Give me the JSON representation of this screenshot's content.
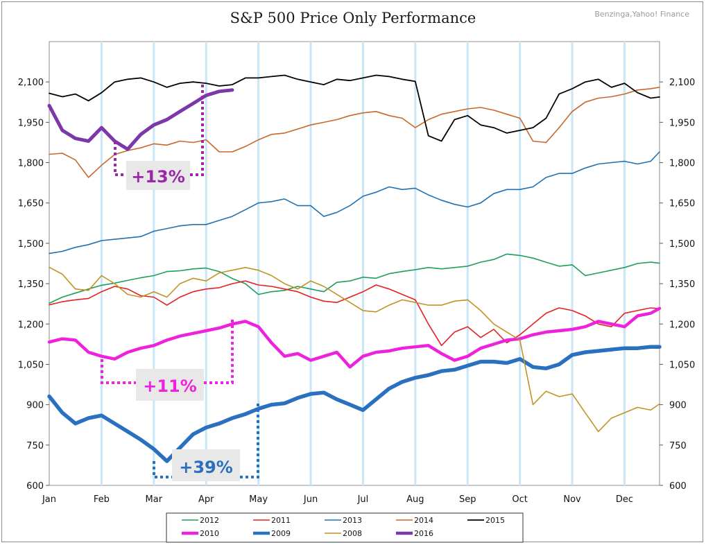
{
  "title": "S&P 500 Price Only Performance",
  "source": "Benzinga,Yahoo! Finance",
  "chart_data": {
    "type": "line",
    "title": "S&P 500 Price Only Performance",
    "x_categories": [
      "Jan",
      "Feb",
      "Mar",
      "Apr",
      "May",
      "Jun",
      "Jul",
      "Aug",
      "Sep",
      "Oct",
      "Nov",
      "Dec"
    ],
    "ylim": [
      600,
      2250
    ],
    "yticks": [
      600,
      750,
      900,
      1050,
      1200,
      1350,
      1500,
      1650,
      1800,
      1950,
      2100
    ],
    "ytick_labels": [
      "600",
      "750",
      "900",
      "1,050",
      "1,200",
      "1,350",
      "1,500",
      "1,650",
      "1,800",
      "1,950",
      "2,100"
    ],
    "grid": "vertical",
    "legend_position": "bottom",
    "series": [
      {
        "name": "2012",
        "color": "#1e9e5a",
        "width": 1.6,
        "x": [
          0,
          0.25,
          0.5,
          0.75,
          1,
          1.25,
          1.5,
          1.75,
          2,
          2.25,
          2.5,
          2.75,
          3,
          3.25,
          3.5,
          3.75,
          4,
          4.25,
          4.5,
          4.75,
          5,
          5.25,
          5.5,
          5.75,
          6,
          6.25,
          6.5,
          6.75,
          7,
          7.25,
          7.5,
          7.75,
          8,
          8.25,
          8.5,
          8.75,
          9,
          9.25,
          9.5,
          9.75,
          10,
          10.25,
          10.5,
          10.75,
          11,
          11.25,
          11.5,
          11.67
        ],
        "y": [
          1277,
          1300,
          1315,
          1330,
          1344,
          1352,
          1362,
          1372,
          1380,
          1395,
          1398,
          1405,
          1408,
          1395,
          1369,
          1350,
          1310,
          1320,
          1325,
          1340,
          1330,
          1320,
          1355,
          1360,
          1374,
          1370,
          1387,
          1395,
          1402,
          1410,
          1405,
          1410,
          1415,
          1430,
          1440,
          1460,
          1455,
          1445,
          1430,
          1415,
          1420,
          1380,
          1390,
          1400,
          1410,
          1425,
          1430,
          1426
        ]
      },
      {
        "name": "2011",
        "color": "#e52020",
        "width": 1.6,
        "x": [
          0,
          0.25,
          0.5,
          0.75,
          1,
          1.25,
          1.5,
          1.75,
          2,
          2.25,
          2.5,
          2.75,
          3,
          3.25,
          3.5,
          3.75,
          4,
          4.25,
          4.5,
          4.75,
          5,
          5.25,
          5.5,
          5.75,
          6,
          6.25,
          6.5,
          6.75,
          7,
          7.25,
          7.5,
          7.75,
          8,
          8.25,
          8.5,
          8.75,
          9,
          9.25,
          9.5,
          9.75,
          10,
          10.25,
          10.5,
          10.75,
          11,
          11.25,
          11.5,
          11.67
        ],
        "y": [
          1271,
          1283,
          1290,
          1295,
          1320,
          1340,
          1330,
          1305,
          1300,
          1270,
          1300,
          1320,
          1330,
          1335,
          1350,
          1360,
          1345,
          1340,
          1330,
          1320,
          1300,
          1285,
          1280,
          1300,
          1320,
          1345,
          1330,
          1310,
          1290,
          1200,
          1120,
          1170,
          1190,
          1150,
          1180,
          1130,
          1160,
          1200,
          1240,
          1260,
          1250,
          1230,
          1200,
          1190,
          1240,
          1250,
          1260,
          1257
        ]
      },
      {
        "name": "2013",
        "color": "#2070b0",
        "width": 1.6,
        "x": [
          0,
          0.25,
          0.5,
          0.75,
          1,
          1.25,
          1.5,
          1.75,
          2,
          2.25,
          2.5,
          2.75,
          3,
          3.25,
          3.5,
          3.75,
          4,
          4.25,
          4.5,
          4.75,
          5,
          5.25,
          5.5,
          5.75,
          6,
          6.25,
          6.5,
          6.75,
          7,
          7.25,
          7.5,
          7.75,
          8,
          8.25,
          8.5,
          8.75,
          9,
          9.25,
          9.5,
          9.75,
          10,
          10.25,
          10.5,
          10.75,
          11,
          11.25,
          11.5,
          11.67
        ],
        "y": [
          1462,
          1470,
          1485,
          1495,
          1510,
          1515,
          1520,
          1525,
          1545,
          1555,
          1565,
          1570,
          1570,
          1585,
          1600,
          1625,
          1650,
          1655,
          1665,
          1640,
          1640,
          1600,
          1615,
          1640,
          1675,
          1690,
          1710,
          1700,
          1705,
          1680,
          1660,
          1645,
          1635,
          1650,
          1685,
          1700,
          1700,
          1710,
          1745,
          1760,
          1760,
          1780,
          1795,
          1800,
          1805,
          1795,
          1805,
          1840
        ]
      },
      {
        "name": "2014",
        "color": "#c8672a",
        "width": 1.6,
        "x": [
          0,
          0.25,
          0.5,
          0.75,
          1,
          1.25,
          1.5,
          1.75,
          2,
          2.25,
          2.5,
          2.75,
          3,
          3.25,
          3.5,
          3.75,
          4,
          4.25,
          4.5,
          4.75,
          5,
          5.25,
          5.5,
          5.75,
          6,
          6.25,
          6.5,
          6.75,
          7,
          7.25,
          7.5,
          7.75,
          8,
          8.25,
          8.5,
          8.75,
          9,
          9.25,
          9.5,
          9.75,
          10,
          10.25,
          10.5,
          10.75,
          11,
          11.25,
          11.5,
          11.67
        ],
        "y": [
          1831,
          1835,
          1810,
          1745,
          1790,
          1830,
          1845,
          1855,
          1870,
          1865,
          1880,
          1875,
          1885,
          1840,
          1840,
          1860,
          1885,
          1905,
          1910,
          1925,
          1940,
          1950,
          1960,
          1975,
          1985,
          1990,
          1975,
          1965,
          1930,
          1960,
          1980,
          1990,
          2000,
          2005,
          1995,
          1980,
          1965,
          1880,
          1875,
          1930,
          1990,
          2025,
          2040,
          2045,
          2055,
          2070,
          2075,
          2080
        ]
      },
      {
        "name": "2015",
        "color": "#000000",
        "width": 1.8,
        "x": [
          0,
          0.25,
          0.5,
          0.75,
          1,
          1.25,
          1.5,
          1.75,
          2,
          2.25,
          2.5,
          2.75,
          3,
          3.25,
          3.5,
          3.75,
          4,
          4.25,
          4.5,
          4.75,
          5,
          5.25,
          5.5,
          5.75,
          6,
          6.25,
          6.5,
          6.75,
          7,
          7.25,
          7.5,
          7.75,
          8,
          8.25,
          8.5,
          8.75,
          9,
          9.25,
          9.5,
          9.75,
          10,
          10.25,
          10.5,
          10.75,
          11,
          11.25,
          11.5,
          11.67
        ],
        "y": [
          2058,
          2045,
          2055,
          2030,
          2060,
          2100,
          2110,
          2115,
          2100,
          2080,
          2095,
          2100,
          2095,
          2085,
          2090,
          2115,
          2115,
          2120,
          2125,
          2110,
          2100,
          2090,
          2110,
          2105,
          2115,
          2125,
          2120,
          2110,
          2102,
          1900,
          1880,
          1960,
          1975,
          1940,
          1930,
          1910,
          1920,
          1930,
          1965,
          2055,
          2075,
          2100,
          2110,
          2080,
          2095,
          2060,
          2040,
          2044
        ]
      },
      {
        "name": "2010",
        "color": "#ee22dd",
        "width": 4.5,
        "x": [
          0,
          0.25,
          0.5,
          0.75,
          1,
          1.25,
          1.5,
          1.75,
          2,
          2.25,
          2.5,
          2.75,
          3,
          3.25,
          3.5,
          3.75,
          4,
          4.25,
          4.5,
          4.75,
          5,
          5.25,
          5.5,
          5.75,
          6,
          6.25,
          6.5,
          6.75,
          7,
          7.25,
          7.5,
          7.75,
          8,
          8.25,
          8.5,
          8.75,
          9,
          9.25,
          9.5,
          9.75,
          10,
          10.25,
          10.5,
          10.75,
          11,
          11.25,
          11.5,
          11.67
        ],
        "y": [
          1133,
          1145,
          1140,
          1095,
          1080,
          1070,
          1095,
          1110,
          1120,
          1140,
          1155,
          1165,
          1175,
          1185,
          1200,
          1210,
          1190,
          1130,
          1080,
          1090,
          1065,
          1080,
          1095,
          1040,
          1080,
          1095,
          1100,
          1110,
          1115,
          1120,
          1090,
          1065,
          1080,
          1110,
          1125,
          1140,
          1145,
          1160,
          1170,
          1175,
          1180,
          1190,
          1210,
          1200,
          1190,
          1230,
          1240,
          1258
        ]
      },
      {
        "name": "2009",
        "color": "#2a70c0",
        "width": 5.5,
        "x": [
          0,
          0.25,
          0.5,
          0.75,
          1,
          1.25,
          1.5,
          1.75,
          2,
          2.25,
          2.5,
          2.75,
          3,
          3.25,
          3.5,
          3.75,
          4,
          4.25,
          4.5,
          4.75,
          5,
          5.25,
          5.5,
          5.75,
          6,
          6.25,
          6.5,
          6.75,
          7,
          7.25,
          7.5,
          7.75,
          8,
          8.25,
          8.5,
          8.75,
          9,
          9.25,
          9.5,
          9.75,
          10,
          10.25,
          10.5,
          10.75,
          11,
          11.25,
          11.5,
          11.67
        ],
        "y": [
          931,
          870,
          830,
          850,
          860,
          830,
          800,
          770,
          735,
          690,
          740,
          790,
          815,
          830,
          850,
          865,
          885,
          900,
          905,
          925,
          940,
          945,
          920,
          900,
          880,
          920,
          960,
          985,
          1000,
          1010,
          1025,
          1030,
          1045,
          1060,
          1060,
          1055,
          1070,
          1040,
          1035,
          1050,
          1085,
          1095,
          1100,
          1105,
          1110,
          1110,
          1115,
          1115
        ]
      },
      {
        "name": "2008",
        "color": "#c09422",
        "width": 1.6,
        "x": [
          0,
          0.25,
          0.5,
          0.75,
          1,
          1.25,
          1.5,
          1.75,
          2,
          2.25,
          2.5,
          2.75,
          3,
          3.25,
          3.5,
          3.75,
          4,
          4.25,
          4.5,
          4.75,
          5,
          5.25,
          5.5,
          5.75,
          6,
          6.25,
          6.5,
          6.75,
          7,
          7.25,
          7.5,
          7.75,
          8,
          8.25,
          8.5,
          8.75,
          9,
          9.25,
          9.5,
          9.75,
          10,
          10.25,
          10.5,
          10.75,
          11,
          11.25,
          11.5,
          11.67
        ],
        "y": [
          1411,
          1385,
          1330,
          1325,
          1380,
          1350,
          1310,
          1300,
          1320,
          1300,
          1350,
          1370,
          1360,
          1390,
          1400,
          1410,
          1400,
          1380,
          1350,
          1330,
          1360,
          1340,
          1310,
          1280,
          1250,
          1245,
          1270,
          1290,
          1280,
          1270,
          1270,
          1285,
          1290,
          1250,
          1200,
          1170,
          1140,
          900,
          950,
          930,
          940,
          870,
          800,
          850,
          870,
          890,
          880,
          903
        ]
      },
      {
        "name": "2016",
        "color": "#7a38a8",
        "width": 5,
        "x": [
          0,
          0.25,
          0.5,
          0.75,
          1,
          1.25,
          1.5,
          1.75,
          2,
          2.25,
          2.5,
          2.75,
          3,
          3.25,
          3.5
        ],
        "y": [
          2012,
          1920,
          1890,
          1880,
          1930,
          1880,
          1850,
          1905,
          1940,
          1960,
          1990,
          2020,
          2050,
          2065,
          2070
        ]
      }
    ],
    "annotations": [
      {
        "label": "+13%",
        "color": "#9a27a8"
      },
      {
        "label": "+11%",
        "color": "#ee22dd"
      },
      {
        "label": "+39%",
        "color": "#2a70c0"
      }
    ],
    "legend_order": [
      "2012",
      "2011",
      "2013",
      "2014",
      "2015",
      "2010",
      "2009",
      "2008",
      "2016"
    ]
  }
}
